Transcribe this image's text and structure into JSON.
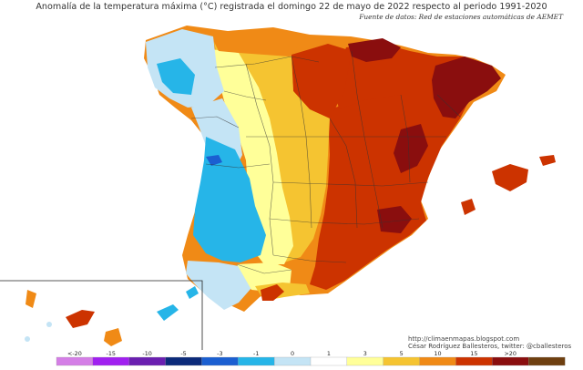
{
  "title": "Anomalía de la temperatura máxima (°C) registrada el domingo 22 de mayo de 2022 respecto al periodo 1991-2020",
  "source": "Fuente de datos: Red de estaciones automáticas de AEMET",
  "credit_url": "http://climaenmapas.blogspot.com",
  "credit_author": "César Rodríguez Ballesteros, twitter: @cballesteros",
  "legend": {
    "ticks": [
      "<-20",
      "-15",
      "-10",
      "-5",
      "-3",
      "-1",
      "0",
      "1",
      "3",
      "5",
      "10",
      "15",
      ">20"
    ],
    "colors": [
      "#d47ee6",
      "#a020f0",
      "#6a1fb0",
      "#0b2a7a",
      "#1b5fd1",
      "#26b5e8",
      "#c4e4f5",
      "#ffffff",
      "#ffff99",
      "#f5c431",
      "#f08a16",
      "#cc3300",
      "#8a0e0e",
      "#6e3f10"
    ]
  },
  "regions": [
    {
      "name": "iberia-base",
      "color": "#f08a16"
    },
    {
      "name": "cantabrian-coast",
      "color": "#f08a16"
    },
    {
      "name": "aragon-catalonia",
      "color": "#cc3300"
    },
    {
      "name": "castilla-la-mancha",
      "color": "#cc3300"
    },
    {
      "name": "levante",
      "color": "#cc3300"
    },
    {
      "name": "pyrenees-hotspot",
      "color": "#8a0e0e"
    },
    {
      "name": "catalonia-hotspot",
      "color": "#8a0e0e"
    },
    {
      "name": "ebro-hotspot",
      "color": "#8a0e0e"
    },
    {
      "name": "murcia-hotspot",
      "color": "#8a0e0e"
    },
    {
      "name": "north-plateau",
      "color": "#f5c431"
    },
    {
      "name": "west-yellow-band",
      "color": "#ffff99"
    },
    {
      "name": "galicia",
      "color": "#c4e4f5"
    },
    {
      "name": "galicia-coast",
      "color": "#26b5e8"
    },
    {
      "name": "portugal-north",
      "color": "#c4e4f5"
    },
    {
      "name": "portugal-central",
      "color": "#26b5e8"
    },
    {
      "name": "portugal-lisbon",
      "color": "#1b5fd1"
    },
    {
      "name": "portugal-south",
      "color": "#c4e4f5"
    },
    {
      "name": "andalusia-west",
      "color": "#ffff99"
    },
    {
      "name": "andalusia-south",
      "color": "#f5c431"
    },
    {
      "name": "andalusia-coast",
      "color": "#cc3300"
    },
    {
      "name": "mallorca",
      "color": "#cc3300"
    },
    {
      "name": "menorca",
      "color": "#cc3300"
    },
    {
      "name": "ibiza",
      "color": "#cc3300"
    },
    {
      "name": "canary-tenerife",
      "color": "#cc3300"
    },
    {
      "name": "canary-gran-canaria",
      "color": "#f08a16"
    },
    {
      "name": "canary-la-palma",
      "color": "#f08a16"
    },
    {
      "name": "canary-fuerteventura",
      "color": "#26b5e8"
    },
    {
      "name": "canary-lanzarote",
      "color": "#26b5e8"
    }
  ]
}
